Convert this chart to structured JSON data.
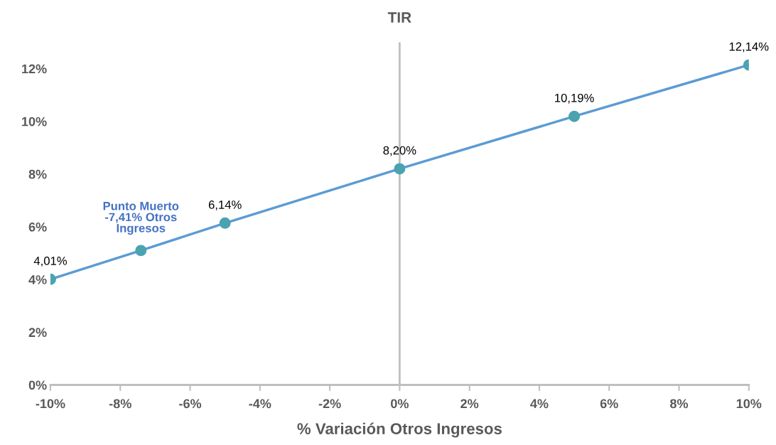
{
  "chart_data": {
    "type": "line",
    "title": "TIR",
    "xlabel": "% Variación Otros Ingresos",
    "x": [
      -10,
      -7.41,
      -5,
      0,
      5,
      10
    ],
    "series": [
      {
        "color": "#5b9bd5",
        "colors": [
          "#4ba3b1",
          "#4ba3b1",
          "#4ba3b1",
          "#4ba3b1",
          "#4ba3b1",
          "#4ba3b1"
        ],
        "values": [
          4.01,
          5.1,
          6.14,
          8.2,
          10.19,
          12.14
        ],
        "value_labels": [
          "4,01%",
          null,
          "6,14%",
          "8,20%",
          "10,19%",
          "12,14%"
        ]
      }
    ],
    "annotations": [
      {
        "text": "Punto Muerto\n-7,41% Otros\nIngresos",
        "x": -7.41,
        "y": 5.1
      }
    ],
    "ref_lines": [
      {
        "axis": "x",
        "value": 0,
        "color": "#bfbfbf"
      }
    ],
    "xlim": [
      -10,
      10
    ],
    "xticks": [
      {
        "value": -10,
        "label": "-10%"
      },
      {
        "value": -8,
        "label": "-8%"
      },
      {
        "value": -6,
        "label": "-6%"
      },
      {
        "value": -4,
        "label": "-4%"
      },
      {
        "value": -2,
        "label": "-2%"
      },
      {
        "value": 0,
        "label": "0%"
      },
      {
        "value": 2,
        "label": "2%"
      },
      {
        "value": 4,
        "label": "4%"
      },
      {
        "value": 6,
        "label": "6%"
      },
      {
        "value": 8,
        "label": "8%"
      },
      {
        "value": 10,
        "label": "10%"
      }
    ],
    "ylim": [
      0,
      13
    ],
    "yticks": [
      {
        "value": 0,
        "label": "0%"
      },
      {
        "value": 2,
        "label": "2%"
      },
      {
        "value": 4,
        "label": "4%"
      },
      {
        "value": 6,
        "label": "6%"
      },
      {
        "value": 8,
        "label": "8%"
      },
      {
        "value": 10,
        "label": "10%"
      },
      {
        "value": 12,
        "label": "12%"
      }
    ],
    "grid": false,
    "marker": "circle",
    "line_style": "solid"
  }
}
